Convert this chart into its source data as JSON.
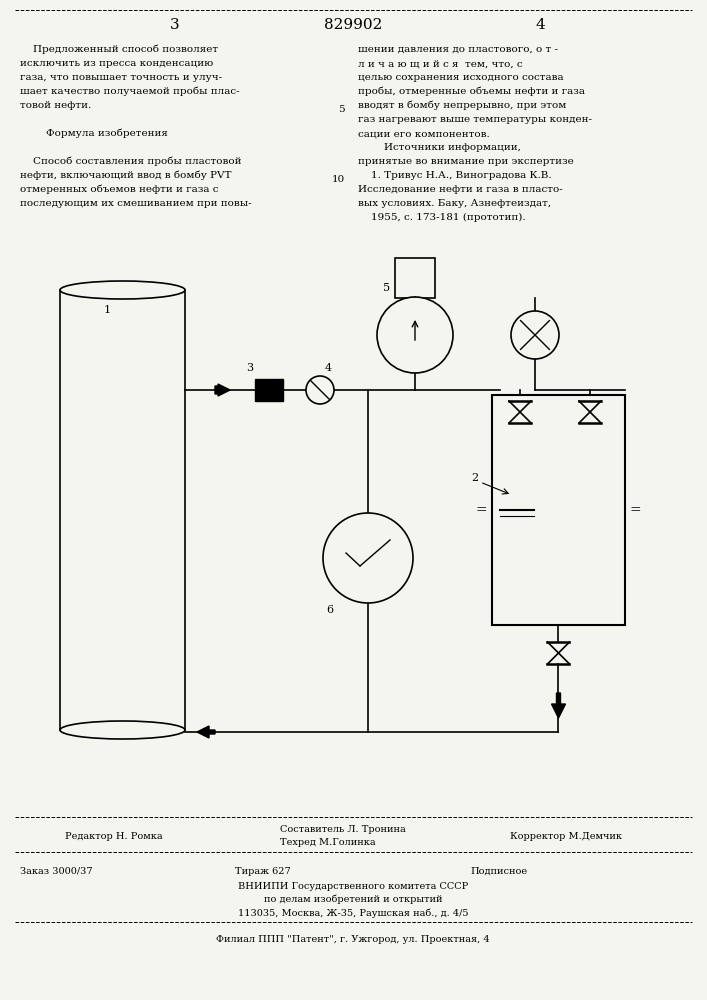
{
  "bg_color": "#f5f5f0",
  "page_number_left": "3",
  "page_number_center": "829902",
  "page_number_right": "4",
  "left_col_text": [
    "    Предложенный способ позволяет",
    "исключить из пресса конденсацию",
    "газа, что повышает точность и улуч-",
    "шает качество получаемой пробы плас-",
    "товой нефти.",
    "",
    "        Формула изобретения",
    "",
    "    Способ составления пробы пластовой",
    "нефти, включающий ввод в бомбу PVT",
    "отмеренных объемов нефти и газа с",
    "последующим их смешиванием при повы-"
  ],
  "right_col_text": [
    "шении давления до пластового, о т -",
    "л и ч а ю щ и й с я  тем, что, с",
    "целью сохранения исходного состава",
    "пробы, отмеренные объемы нефти и газа",
    "вводят в бомбу непрерывно, при этом",
    "газ нагревают выше температуры конден-",
    "сации его компонентов.",
    "        Источники информации,",
    "принятые во внимание при экспертизе",
    "    1. Тривус Н.А., Виноградова К.В.",
    "Исследование нефти и газа в пласто-",
    "вых условиях. Баку, Азнефтеиздат,",
    "    1955, с. 173-181 (прототип)."
  ],
  "right_col_line5_num": "5",
  "right_col_line10_num": "10",
  "footer_line1_left": "Редактор Н. Ромка",
  "footer_center1": "Составитель Л. Тронина",
  "footer_center2": "Техред М.Голинка",
  "footer_line1_right": "Корректор М.Демчик",
  "footer_line2_left": "Заказ 3000/37",
  "footer_line2_center_top": "Тираж 627",
  "footer_line2_center_right": "Подписное",
  "footer_line2_center2": "ВНИИПИ Государственного комитета СССР",
  "footer_line2_center3": "по делам изобретений и открытий",
  "footer_line2_center4": "113035, Москва, Ж-35, Раушская наб., д. 4/5",
  "footer_line3": "Филиал ППП \"Патент\", г. Ужгород, ул. Проектная, 4"
}
